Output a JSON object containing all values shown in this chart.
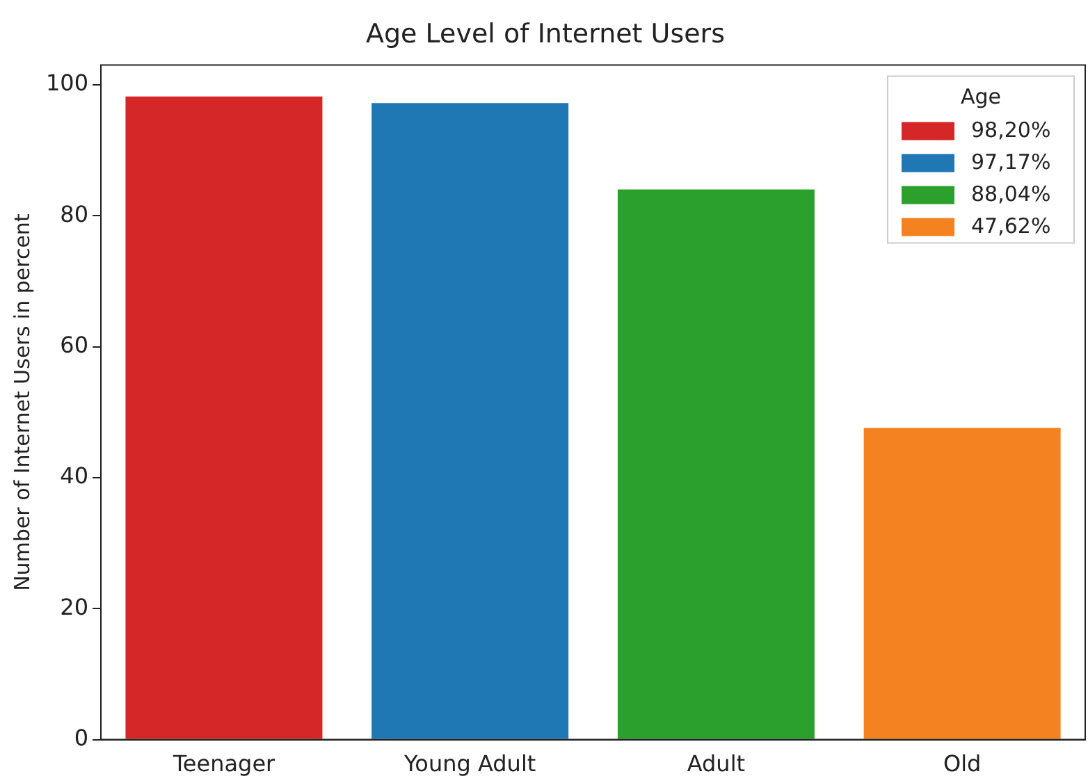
{
  "chart_data": {
    "type": "bar",
    "title": "Age Level of Internet Users",
    "ylabel": "Number of Internet Users in percent",
    "legend_title": "Age",
    "categories": [
      "Teenager",
      "Young Adult",
      "Adult",
      "Old"
    ],
    "series": [
      {
        "name": "98,20%",
        "color": "#d62728",
        "values": [
          98.2,
          null,
          null,
          null
        ]
      },
      {
        "name": "97,17%",
        "color": "#1f77b4",
        "values": [
          null,
          97.2,
          null,
          null
        ]
      },
      {
        "name": "88,04%",
        "color": "#2ca02c",
        "values": [
          null,
          null,
          84,
          null
        ]
      },
      {
        "name": "47,62%",
        "color": "#f58220",
        "values": [
          null,
          null,
          null,
          47.6
        ]
      }
    ],
    "ylim": [
      0,
      103
    ],
    "yticks": [
      0,
      20,
      40,
      60,
      80,
      100
    ],
    "grid": false,
    "legend": "top right"
  }
}
